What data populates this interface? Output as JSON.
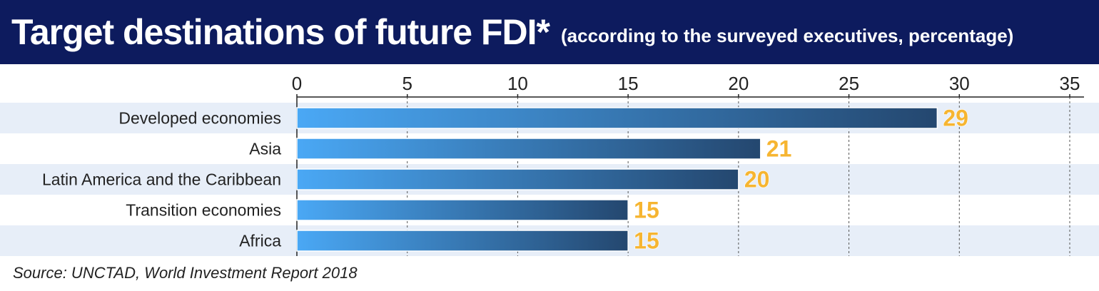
{
  "header": {
    "title": "Target destinations of future FDI*",
    "subtitle": "(according to the surveyed executives, percentage)"
  },
  "footer": {
    "source": "Source: UNCTAD, World Investment Report 2018"
  },
  "colors": {
    "header_bg": "#0d1b5e",
    "bar_start": "#4aa8f5",
    "bar_end": "#24476f",
    "band": "#e7eef8",
    "label_fill": "#f6b531",
    "label_outline": "#ffffff"
  },
  "chart_data": {
    "type": "bar",
    "orientation": "horizontal",
    "categories": [
      "Developed economies",
      "Asia",
      "Latin America and the Caribbean",
      "Transition economies",
      "Africa"
    ],
    "values": [
      29,
      21,
      20,
      15,
      15
    ],
    "xlim": [
      0,
      35
    ],
    "xticks": [
      0,
      5,
      10,
      15,
      20,
      25,
      30,
      35
    ],
    "grid": true,
    "data_labels": true
  }
}
